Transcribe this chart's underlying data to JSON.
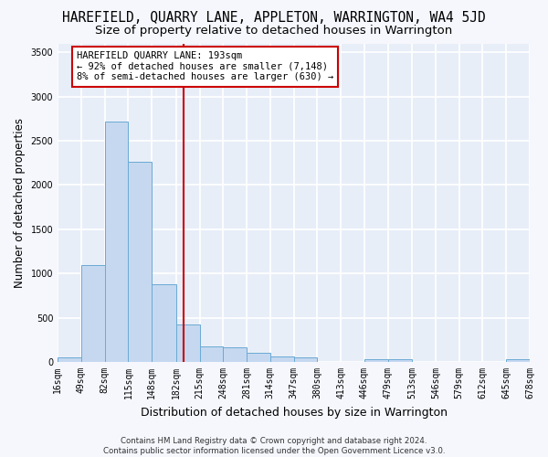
{
  "title": "HAREFIELD, QUARRY LANE, APPLETON, WARRINGTON, WA4 5JD",
  "subtitle": "Size of property relative to detached houses in Warrington",
  "xlabel": "Distribution of detached houses by size in Warrington",
  "ylabel": "Number of detached properties",
  "footer_line1": "Contains HM Land Registry data © Crown copyright and database right 2024.",
  "footer_line2": "Contains public sector information licensed under the Open Government Licence v3.0.",
  "annotation_line1": "HAREFIELD QUARRY LANE: 193sqm",
  "annotation_line2": "← 92% of detached houses are smaller (7,148)",
  "annotation_line3": "8% of semi-detached houses are larger (630) →",
  "bin_edges": [
    16,
    49,
    82,
    115,
    148,
    182,
    215,
    248,
    281,
    314,
    347,
    380,
    413,
    446,
    479,
    513,
    546,
    579,
    612,
    645,
    678
  ],
  "bin_counts": [
    50,
    1100,
    2720,
    2260,
    880,
    420,
    175,
    170,
    100,
    60,
    50,
    0,
    0,
    30,
    30,
    0,
    0,
    0,
    0,
    30
  ],
  "property_size": 193,
  "bar_color": "#c5d8f0",
  "bar_edge_color": "#6aaad4",
  "vline_color": "#cc0000",
  "annotation_box_color": "#ffffff",
  "annotation_box_edge": "#cc0000",
  "plot_bg_color": "#e8eef8",
  "fig_bg_color": "#f5f7fd",
  "grid_color": "#ffffff",
  "yticks": [
    0,
    500,
    1000,
    1500,
    2000,
    2500,
    3000,
    3500
  ],
  "ylim": [
    0,
    3600
  ],
  "xlim": [
    16,
    678
  ],
  "title_fontsize": 10.5,
  "subtitle_fontsize": 9.5,
  "ylabel_fontsize": 8.5,
  "xlabel_fontsize": 9,
  "tick_fontsize": 7,
  "annotation_fontsize": 7.5,
  "tick_labels": [
    "16sqm",
    "49sqm",
    "82sqm",
    "115sqm",
    "148sqm",
    "182sqm",
    "215sqm",
    "248sqm",
    "281sqm",
    "314sqm",
    "347sqm",
    "380sqm",
    "413sqm",
    "446sqm",
    "479sqm",
    "513sqm",
    "546sqm",
    "579sqm",
    "612sqm",
    "645sqm",
    "678sqm"
  ]
}
